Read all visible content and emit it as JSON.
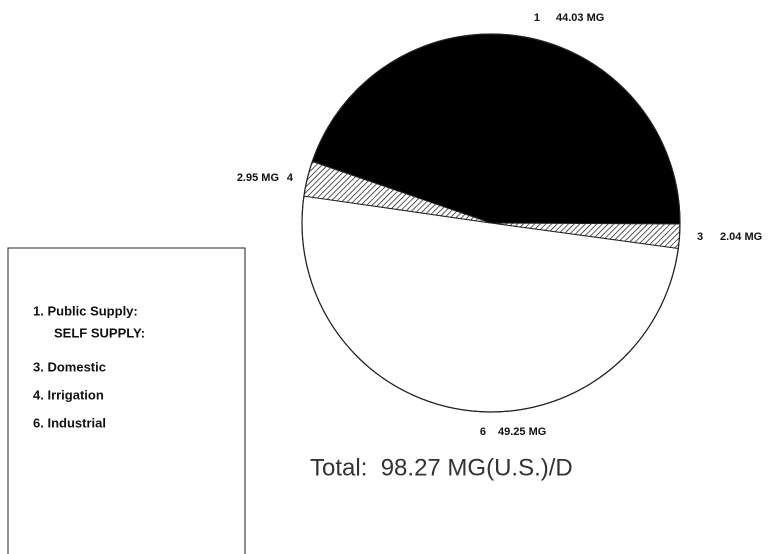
{
  "chart_data": {
    "type": "pie",
    "categories": [
      "1",
      "3",
      "6",
      "4"
    ],
    "values": [
      44.03,
      2.04,
      49.25,
      2.95
    ],
    "value_labels": [
      "44.03 MG",
      "2.04 MG",
      "49.25 MG",
      "2.95 MG"
    ],
    "colors": [
      "#000000",
      "#ffffff",
      "#ffffff",
      "#ffffff"
    ],
    "hatched": [
      false,
      true,
      false,
      true
    ],
    "legend": {
      "items": [
        "1. Public Supply:",
        "SELF SUPPLY:",
        "3. Domestic",
        "4. Irrigation",
        "6. Industrial"
      ]
    },
    "annotation": "Total:  98.27 MG(U.S.)/D"
  }
}
